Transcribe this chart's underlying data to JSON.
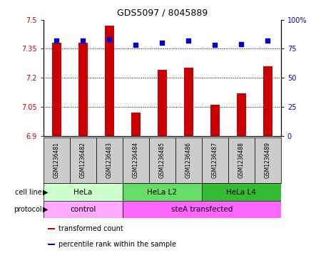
{
  "title": "GDS5097 / 8045889",
  "samples": [
    "GSM1236481",
    "GSM1236482",
    "GSM1236483",
    "GSM1236484",
    "GSM1236485",
    "GSM1236486",
    "GSM1236487",
    "GSM1236488",
    "GSM1236489"
  ],
  "transformed_counts": [
    7.38,
    7.38,
    7.47,
    7.02,
    7.24,
    7.25,
    7.06,
    7.12,
    7.26
  ],
  "percentile_ranks": [
    82,
    82,
    83,
    78,
    80,
    82,
    78,
    79,
    82
  ],
  "ylim_left": [
    6.9,
    7.5
  ],
  "ylim_right": [
    0,
    100
  ],
  "yticks_left": [
    6.9,
    7.05,
    7.2,
    7.35,
    7.5
  ],
  "yticks_right": [
    0,
    25,
    50,
    75,
    100
  ],
  "ytick_labels_left": [
    "6.9",
    "7.05",
    "7.2",
    "7.35",
    "7.5"
  ],
  "ytick_labels_right": [
    "0",
    "25",
    "50",
    "75",
    "100%"
  ],
  "bar_color": "#cc0000",
  "dot_color": "#0000cc",
  "cell_line_groups": [
    {
      "label": "HeLa",
      "start": 0,
      "end": 3,
      "color": "#ccffcc"
    },
    {
      "label": "HeLa L2",
      "start": 3,
      "end": 6,
      "color": "#66dd66"
    },
    {
      "label": "HeLa L4",
      "start": 6,
      "end": 9,
      "color": "#33bb33"
    }
  ],
  "protocol_groups": [
    {
      "label": "control",
      "start": 0,
      "end": 3,
      "color": "#ffaaff"
    },
    {
      "label": "steA transfected",
      "start": 3,
      "end": 9,
      "color": "#ff66ff"
    }
  ],
  "legend_items": [
    {
      "color": "#cc0000",
      "label": "transformed count"
    },
    {
      "color": "#0000cc",
      "label": "percentile rank within the sample"
    }
  ],
  "cell_line_label": "cell line",
  "protocol_label": "protocol",
  "sample_bg_color": "#cccccc",
  "gridline_ticks": [
    7.05,
    7.2,
    7.35
  ],
  "bar_width": 0.35
}
